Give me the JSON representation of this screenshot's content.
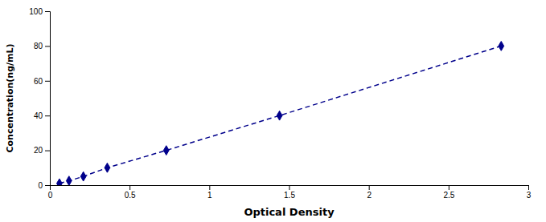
{
  "chart_data": {
    "type": "line",
    "x_label": "Optical Density",
    "y_label": "Concentration(ng/mL)",
    "x": [
      0.06,
      0.12,
      0.21,
      0.36,
      0.73,
      1.44,
      2.83
    ],
    "values": [
      1,
      2.5,
      5,
      10,
      20,
      40,
      80
    ],
    "color": "#00008B",
    "marker": "diamond",
    "line_style": "dashed",
    "xlim": [
      0,
      3
    ],
    "ylim": [
      0,
      100
    ],
    "xticks": [
      0,
      0.5,
      1,
      1.5,
      2,
      2.5,
      3
    ],
    "yticks": [
      0,
      20,
      40,
      60,
      80,
      100
    ]
  }
}
